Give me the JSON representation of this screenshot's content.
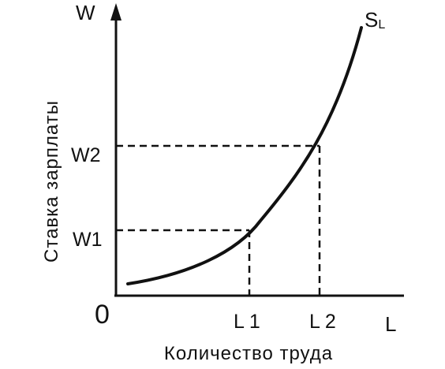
{
  "diagram": {
    "origin_label": "0",
    "y_axis": {
      "letter": "W",
      "title": "Ставка зарплаты"
    },
    "x_axis": {
      "letter": "L",
      "title": "Количество труда"
    },
    "curve": {
      "name": "S",
      "subscript": "L"
    },
    "y_ticks": [
      "W1",
      "W2"
    ],
    "x_ticks": [
      "L 1",
      "L 2"
    ]
  }
}
